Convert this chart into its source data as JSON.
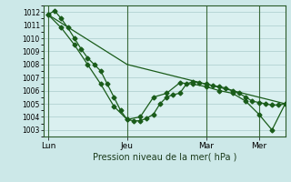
{
  "background_color": "#cce8e8",
  "plot_bg_color": "#daf0f0",
  "grid_color": "#aacccc",
  "line_color": "#1a5c1a",
  "marker_color": "#1a5c1a",
  "vline_color": "#3a6a3a",
  "xlabel": "Pression niveau de la mer( hPa )",
  "ylim": [
    1002.5,
    1012.5
  ],
  "yticks": [
    1003,
    1004,
    1005,
    1006,
    1007,
    1008,
    1009,
    1010,
    1011,
    1012
  ],
  "xtick_labels": [
    "Lun",
    "Jeu",
    "Mar",
    "Mer"
  ],
  "xtick_positions": [
    0,
    36,
    72,
    96
  ],
  "xlim": [
    -2,
    108
  ],
  "series1_x": [
    0,
    3,
    6,
    9,
    12,
    15,
    18,
    21,
    24,
    27,
    30,
    33,
    36,
    39,
    42,
    45,
    48,
    51,
    54,
    57,
    60,
    63,
    66,
    69,
    72,
    75,
    78,
    81,
    84,
    87,
    90,
    93,
    96,
    99,
    102,
    105,
    108
  ],
  "series1_y": [
    1011.8,
    1012.1,
    1011.5,
    1010.8,
    1010.0,
    1009.2,
    1008.5,
    1008.0,
    1007.5,
    1006.5,
    1005.5,
    1004.5,
    1003.8,
    1003.7,
    1003.7,
    1003.9,
    1004.2,
    1005.0,
    1005.5,
    1005.7,
    1005.8,
    1006.5,
    1006.7,
    1006.6,
    1006.5,
    1006.4,
    1006.3,
    1006.2,
    1006.0,
    1005.8,
    1005.5,
    1005.2,
    1005.1,
    1005.0,
    1004.9,
    1004.9,
    1005.0
  ],
  "series2_x": [
    0,
    6,
    12,
    18,
    24,
    30,
    36,
    42,
    48,
    54,
    60,
    66,
    72,
    78,
    84,
    90,
    96,
    102,
    108
  ],
  "series2_y": [
    1011.8,
    1010.8,
    1009.5,
    1008.0,
    1006.5,
    1004.8,
    1003.8,
    1004.0,
    1005.5,
    1005.8,
    1006.6,
    1006.5,
    1006.3,
    1006.0,
    1005.8,
    1005.2,
    1004.2,
    1003.0,
    1005.0
  ],
  "series3_x": [
    0,
    36,
    72,
    108
  ],
  "series3_y": [
    1011.8,
    1008.0,
    1006.5,
    1005.0
  ]
}
